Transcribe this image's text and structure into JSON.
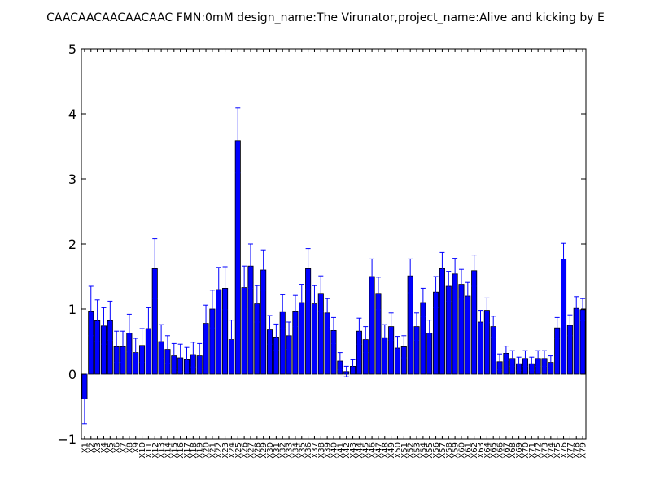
{
  "chart_data": {
    "type": "bar",
    "title": "CAACAACAACAACAAC  FMN:0mM  design_name:The Virunator,project_name:Alive and kicking by E",
    "xlabel": "",
    "ylabel": "",
    "ylim": [
      -1,
      5
    ],
    "yticks": [
      "−1",
      "0",
      "1",
      "2",
      "3",
      "4",
      "5"
    ],
    "grid": false,
    "bar_color": "#0000ff",
    "error_color": "#0000ff",
    "categories": [
      "X1",
      "X2",
      "X3",
      "X4",
      "X5",
      "X6",
      "X7",
      "X8",
      "X9",
      "X10",
      "X11",
      "X12",
      "X13",
      "X14",
      "X15",
      "X16",
      "X17",
      "X18",
      "X19",
      "X20",
      "X21",
      "X22",
      "X23",
      "X24",
      "X25",
      "X26",
      "X27",
      "X28",
      "X29",
      "X30",
      "X31",
      "X32",
      "X33",
      "X34",
      "X35",
      "X36",
      "X37",
      "X38",
      "X39",
      "X40",
      "X41",
      "X42",
      "X43",
      "X44",
      "X45",
      "X46",
      "X47",
      "X48",
      "X49",
      "X50",
      "X51",
      "X52",
      "X53",
      "X54",
      "X55",
      "X56",
      "X57",
      "X58",
      "X59",
      "X60",
      "X61",
      "X62",
      "X63",
      "X64",
      "X65",
      "X66",
      "X67",
      "X68",
      "X69",
      "X70",
      "X71",
      "X72",
      "X73",
      "X74",
      "X75",
      "X76",
      "X77",
      "X78",
      "X79"
    ],
    "values": [
      -0.38,
      0.97,
      0.82,
      0.74,
      0.82,
      0.42,
      0.42,
      0.63,
      0.33,
      0.44,
      0.7,
      1.62,
      0.5,
      0.38,
      0.28,
      0.25,
      0.22,
      0.3,
      0.28,
      0.78,
      1.0,
      1.3,
      1.32,
      0.53,
      3.59,
      1.33,
      1.66,
      1.08,
      1.6,
      0.68,
      0.57,
      0.96,
      0.59,
      0.97,
      1.1,
      1.62,
      1.08,
      1.24,
      0.94,
      0.67,
      0.2,
      0.04,
      0.12,
      0.66,
      0.53,
      1.5,
      1.24,
      0.56,
      0.73,
      0.4,
      0.42,
      1.51,
      0.73,
      1.1,
      0.63,
      1.26,
      1.62,
      1.35,
      1.54,
      1.38,
      1.2,
      1.59,
      0.8,
      0.98,
      0.73,
      0.19,
      0.32,
      0.24,
      0.16,
      0.24,
      0.16,
      0.24,
      0.24,
      0.18,
      0.71,
      1.77,
      0.75,
      1.01,
      0.99
    ],
    "errors": [
      0.38,
      0.38,
      0.32,
      0.28,
      0.3,
      0.24,
      0.24,
      0.29,
      0.22,
      0.26,
      0.32,
      0.46,
      0.26,
      0.21,
      0.19,
      0.21,
      0.19,
      0.19,
      0.19,
      0.28,
      0.29,
      0.34,
      0.33,
      0.3,
      0.5,
      0.33,
      0.34,
      0.28,
      0.31,
      0.22,
      0.2,
      0.26,
      0.21,
      0.24,
      0.28,
      0.31,
      0.28,
      0.27,
      0.22,
      0.2,
      0.13,
      0.08,
      0.1,
      0.2,
      0.2,
      0.27,
      0.25,
      0.2,
      0.21,
      0.18,
      0.17,
      0.26,
      0.21,
      0.22,
      0.2,
      0.24,
      0.25,
      0.23,
      0.24,
      0.23,
      0.21,
      0.24,
      0.18,
      0.19,
      0.16,
      0.12,
      0.11,
      0.12,
      0.1,
      0.12,
      0.1,
      0.12,
      0.12,
      0.1,
      0.16,
      0.24,
      0.16,
      0.18,
      0.17
    ]
  }
}
